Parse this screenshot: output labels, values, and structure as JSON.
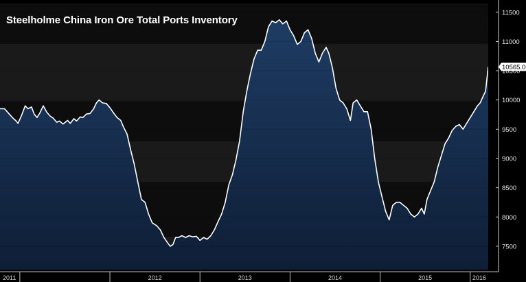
{
  "chart_data": {
    "type": "area",
    "title": "Steelholme China Iron Ore Total Ports Inventory",
    "last_value_label": "10565.00",
    "ylim": [
      7100,
      11650
    ],
    "y_ticks": [
      7500,
      8000,
      8500,
      9000,
      9500,
      10000,
      10500,
      11000,
      11500
    ],
    "y_tick_labels": [
      "7500",
      "8000",
      "8500",
      "9000",
      "9500",
      "10000",
      "10500",
      "11000",
      "11500"
    ],
    "x_tick_labels": [
      "2011",
      "2012",
      "2013",
      "2014",
      "2015",
      "2016"
    ],
    "x_tick_positions": [
      2011.0,
      2012.0,
      2013.0,
      2014.0,
      2015.0,
      2016.0
    ],
    "xlim": [
      2010.78,
      2016.2
    ],
    "colors": {
      "line": "#ffffff",
      "area_top": "#1e3c64",
      "area_bottom": "#0e1e36",
      "background": "#000000",
      "band_light": "#1a1a1a",
      "band_dark": "#0d0d0d",
      "last_value_box": "#ffffff"
    },
    "series": [
      {
        "values": [
          [
            2010.78,
            9850
          ],
          [
            2010.83,
            9850
          ],
          [
            2010.86,
            9800
          ],
          [
            2010.9,
            9730
          ],
          [
            2010.93,
            9680
          ],
          [
            2010.96,
            9640
          ],
          [
            2010.98,
            9600
          ],
          [
            2011.02,
            9740
          ],
          [
            2011.06,
            9900
          ],
          [
            2011.09,
            9850
          ],
          [
            2011.13,
            9880
          ],
          [
            2011.16,
            9760
          ],
          [
            2011.19,
            9700
          ],
          [
            2011.22,
            9770
          ],
          [
            2011.26,
            9900
          ],
          [
            2011.3,
            9790
          ],
          [
            2011.34,
            9720
          ],
          [
            2011.37,
            9690
          ],
          [
            2011.41,
            9620
          ],
          [
            2011.44,
            9640
          ],
          [
            2011.48,
            9590
          ],
          [
            2011.53,
            9650
          ],
          [
            2011.56,
            9600
          ],
          [
            2011.6,
            9680
          ],
          [
            2011.63,
            9640
          ],
          [
            2011.67,
            9710
          ],
          [
            2011.7,
            9700
          ],
          [
            2011.74,
            9760
          ],
          [
            2011.78,
            9770
          ],
          [
            2011.82,
            9850
          ],
          [
            2011.85,
            9950
          ],
          [
            2011.88,
            10000
          ],
          [
            2011.92,
            9950
          ],
          [
            2011.96,
            9940
          ],
          [
            2012.0,
            9870
          ],
          [
            2012.04,
            9780
          ],
          [
            2012.08,
            9700
          ],
          [
            2012.12,
            9650
          ],
          [
            2012.15,
            9540
          ],
          [
            2012.19,
            9420
          ],
          [
            2012.23,
            9150
          ],
          [
            2012.27,
            8900
          ],
          [
            2012.31,
            8600
          ],
          [
            2012.35,
            8300
          ],
          [
            2012.39,
            8250
          ],
          [
            2012.43,
            8050
          ],
          [
            2012.47,
            7900
          ],
          [
            2012.52,
            7850
          ],
          [
            2012.56,
            7780
          ],
          [
            2012.6,
            7650
          ],
          [
            2012.64,
            7560
          ],
          [
            2012.67,
            7500
          ],
          [
            2012.7,
            7530
          ],
          [
            2012.73,
            7650
          ],
          [
            2012.76,
            7650
          ],
          [
            2012.8,
            7680
          ],
          [
            2012.84,
            7650
          ],
          [
            2012.88,
            7680
          ],
          [
            2012.92,
            7660
          ],
          [
            2012.96,
            7670
          ],
          [
            2013.0,
            7600
          ],
          [
            2013.04,
            7650
          ],
          [
            2013.08,
            7620
          ],
          [
            2013.12,
            7680
          ],
          [
            2013.16,
            7780
          ],
          [
            2013.2,
            7920
          ],
          [
            2013.24,
            8050
          ],
          [
            2013.28,
            8250
          ],
          [
            2013.32,
            8550
          ],
          [
            2013.36,
            8720
          ],
          [
            2013.4,
            8980
          ],
          [
            2013.44,
            9300
          ],
          [
            2013.48,
            9800
          ],
          [
            2013.52,
            10150
          ],
          [
            2013.56,
            10450
          ],
          [
            2013.6,
            10700
          ],
          [
            2013.64,
            10850
          ],
          [
            2013.68,
            10850
          ],
          [
            2013.72,
            11000
          ],
          [
            2013.76,
            11250
          ],
          [
            2013.8,
            11350
          ],
          [
            2013.84,
            11320
          ],
          [
            2013.88,
            11370
          ],
          [
            2013.92,
            11300
          ],
          [
            2013.96,
            11350
          ],
          [
            2014.0,
            11200
          ],
          [
            2014.04,
            11100
          ],
          [
            2014.08,
            10950
          ],
          [
            2014.12,
            11000
          ],
          [
            2014.16,
            11150
          ],
          [
            2014.2,
            11200
          ],
          [
            2014.24,
            11050
          ],
          [
            2014.28,
            10800
          ],
          [
            2014.32,
            10650
          ],
          [
            2014.36,
            10800
          ],
          [
            2014.4,
            10900
          ],
          [
            2014.43,
            10800
          ],
          [
            2014.47,
            10550
          ],
          [
            2014.51,
            10200
          ],
          [
            2014.55,
            10000
          ],
          [
            2014.59,
            9950
          ],
          [
            2014.63,
            9850
          ],
          [
            2014.67,
            9650
          ],
          [
            2014.7,
            9950
          ],
          [
            2014.74,
            10000
          ],
          [
            2014.78,
            9900
          ],
          [
            2014.82,
            9800
          ],
          [
            2014.86,
            9800
          ],
          [
            2014.9,
            9500
          ],
          [
            2014.94,
            9000
          ],
          [
            2014.98,
            8600
          ],
          [
            2015.02,
            8350
          ],
          [
            2015.06,
            8100
          ],
          [
            2015.1,
            7950
          ],
          [
            2015.14,
            8200
          ],
          [
            2015.18,
            8250
          ],
          [
            2015.22,
            8250
          ],
          [
            2015.26,
            8200
          ],
          [
            2015.3,
            8150
          ],
          [
            2015.34,
            8050
          ],
          [
            2015.38,
            8000
          ],
          [
            2015.42,
            8050
          ],
          [
            2015.46,
            8150
          ],
          [
            2015.49,
            8050
          ],
          [
            2015.52,
            8300
          ],
          [
            2015.56,
            8450
          ],
          [
            2015.6,
            8600
          ],
          [
            2015.64,
            8850
          ],
          [
            2015.68,
            9050
          ],
          [
            2015.72,
            9250
          ],
          [
            2015.76,
            9350
          ],
          [
            2015.8,
            9480
          ],
          [
            2015.84,
            9550
          ],
          [
            2015.88,
            9580
          ],
          [
            2015.92,
            9500
          ],
          [
            2015.96,
            9600
          ],
          [
            2016.0,
            9700
          ],
          [
            2016.04,
            9800
          ],
          [
            2016.08,
            9900
          ],
          [
            2016.11,
            9950
          ],
          [
            2016.14,
            10050
          ],
          [
            2016.17,
            10150
          ],
          [
            2016.2,
            10565
          ]
        ]
      }
    ]
  }
}
